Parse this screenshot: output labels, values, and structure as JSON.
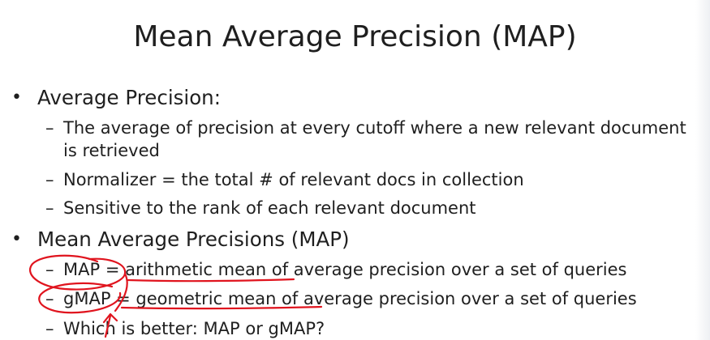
{
  "slide": {
    "title": "Mean Average Precision (MAP)",
    "bullet_symbol": "•",
    "dash_symbol": "–",
    "sections": [
      {
        "heading": "Average Precision:",
        "items": [
          "The average of precision at every cutoff where a new relevant document",
          "is retrieved",
          "Normalizer = the total # of relevant docs in collection",
          "Sensitive  to the rank of each relevant document"
        ]
      },
      {
        "heading": "Mean Average Precisions (MAP)",
        "items": [
          "MAP = arithmetic mean of average precision over a set of queries",
          "gMAP = geometric mean of average precision over a set of queries",
          "Which is better: MAP or gMAP?"
        ]
      }
    ],
    "annotation_color": "#e0141e"
  }
}
